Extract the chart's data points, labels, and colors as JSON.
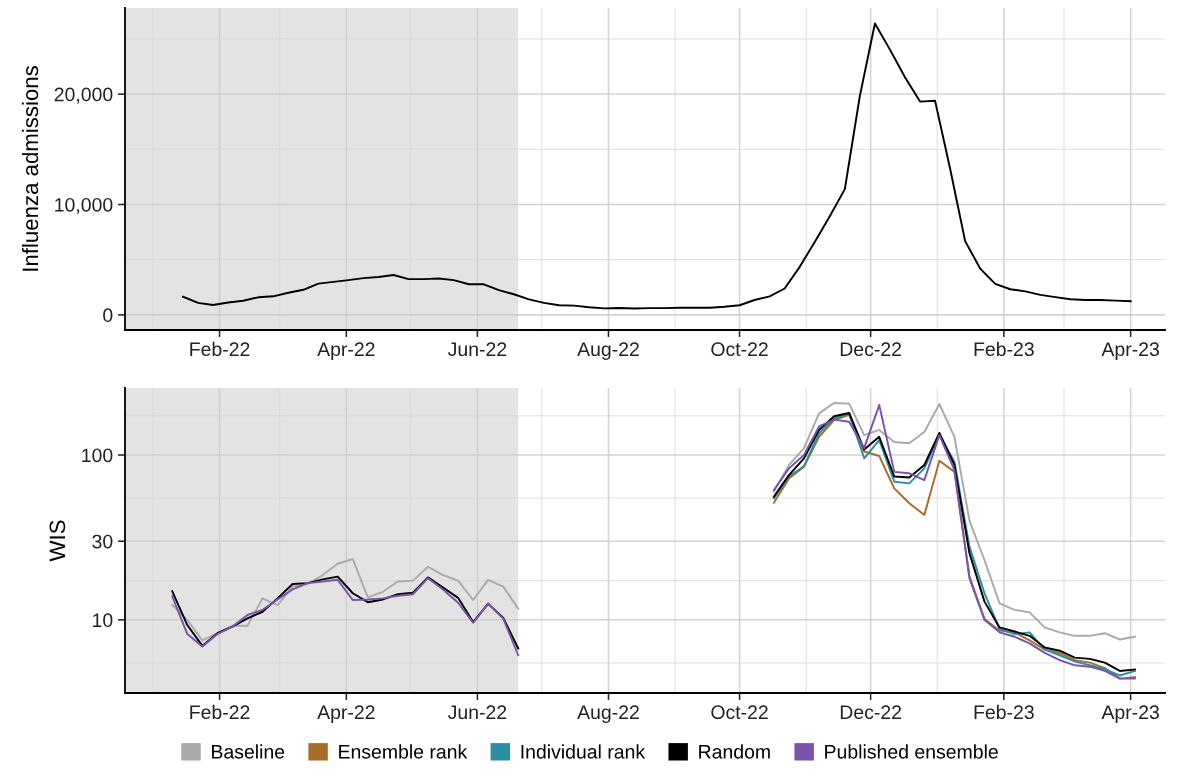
{
  "chart_data": [
    {
      "type": "line",
      "ylabel": "Influenza admissions",
      "x": [
        "2022-01-15",
        "2022-01-22",
        "2022-01-29",
        "2022-02-05",
        "2022-02-12",
        "2022-02-19",
        "2022-02-26",
        "2022-03-05",
        "2022-03-12",
        "2022-03-19",
        "2022-03-26",
        "2022-04-02",
        "2022-04-09",
        "2022-04-16",
        "2022-04-23",
        "2022-04-30",
        "2022-05-07",
        "2022-05-14",
        "2022-05-21",
        "2022-05-28",
        "2022-06-04",
        "2022-06-11",
        "2022-06-18",
        "2022-06-25",
        "2022-07-02",
        "2022-07-09",
        "2022-07-16",
        "2022-07-23",
        "2022-07-30",
        "2022-08-06",
        "2022-08-13",
        "2022-08-20",
        "2022-08-27",
        "2022-09-03",
        "2022-09-10",
        "2022-09-17",
        "2022-09-24",
        "2022-10-01",
        "2022-10-08",
        "2022-10-15",
        "2022-10-22",
        "2022-10-29",
        "2022-11-05",
        "2022-11-12",
        "2022-11-19",
        "2022-11-26",
        "2022-12-03",
        "2022-12-10",
        "2022-12-17",
        "2022-12-24",
        "2022-12-31",
        "2023-01-07",
        "2023-01-14",
        "2023-01-21",
        "2023-01-28",
        "2023-02-04",
        "2023-02-11",
        "2023-02-18",
        "2023-02-25",
        "2023-03-04",
        "2023-03-11",
        "2023-03-18",
        "2023-03-25",
        "2023-04-01"
      ],
      "series": [
        {
          "color": "#000000",
          "values": [
            1650,
            1090,
            900,
            1120,
            1280,
            1590,
            1680,
            2000,
            2270,
            2830,
            2990,
            3150,
            3330,
            3430,
            3610,
            3240,
            3240,
            3300,
            3150,
            2770,
            2770,
            2240,
            1870,
            1400,
            1090,
            870,
            840,
            690,
            590,
            620,
            580,
            610,
            610,
            645,
            645,
            650,
            740,
            870,
            1350,
            1680,
            2390,
            4350,
            6610,
            8940,
            11390,
            19840,
            26390,
            24030,
            21520,
            19320,
            19390,
            13230,
            6680,
            4190,
            2810,
            2320,
            2130,
            1810,
            1610,
            1420,
            1350,
            1350,
            1290,
            1230
          ]
        }
      ],
      "xlim": [
        "2021-12-19",
        "2023-04-17"
      ],
      "xticks": [
        {
          "value": "2022-01-01",
          "label": null
        },
        {
          "value": "2022-02-01",
          "label": "Feb-22"
        },
        {
          "value": "2022-03-01",
          "label": null
        },
        {
          "value": "2022-04-01",
          "label": "Apr-22"
        },
        {
          "value": "2022-05-01",
          "label": null
        },
        {
          "value": "2022-06-01",
          "label": "Jun-22"
        },
        {
          "value": "2022-07-01",
          "label": null
        },
        {
          "value": "2022-08-01",
          "label": "Aug-22"
        },
        {
          "value": "2022-09-01",
          "label": null
        },
        {
          "value": "2022-10-01",
          "label": "Oct-22"
        },
        {
          "value": "2022-11-01",
          "label": null
        },
        {
          "value": "2022-12-01",
          "label": "Dec-22"
        },
        {
          "value": "2023-01-01",
          "label": null
        },
        {
          "value": "2023-02-01",
          "label": "Feb-23"
        },
        {
          "value": "2023-03-01",
          "label": null
        },
        {
          "value": "2023-04-01",
          "label": "Apr-23"
        }
      ],
      "ylim": [
        -1370,
        27800
      ],
      "yticks": [
        {
          "value": 0,
          "label": "0"
        },
        {
          "value": 5000,
          "label": null
        },
        {
          "value": 10000,
          "label": "10,000"
        },
        {
          "value": 15000,
          "label": null
        },
        {
          "value": 20000,
          "label": "20,000"
        },
        {
          "value": 25000,
          "label": null
        }
      ],
      "bands": [
        {
          "axis": "x",
          "from": "2021-12-19",
          "to": "2022-06-20",
          "color": "#e3e3e3"
        }
      ],
      "grid": true,
      "legend": false
    },
    {
      "type": "line",
      "ylabel": "WIS",
      "log": "y",
      "x": [
        "2022-01-10",
        "2022-01-17",
        "2022-01-24",
        "2022-01-31",
        "2022-02-07",
        "2022-02-14",
        "2022-02-21",
        "2022-02-28",
        "2022-03-07",
        "2022-03-14",
        "2022-03-21",
        "2022-03-28",
        "2022-04-04",
        "2022-04-11",
        "2022-04-18",
        "2022-04-25",
        "2022-05-02",
        "2022-05-09",
        "2022-05-16",
        "2022-05-23",
        "2022-05-30",
        "2022-06-06",
        "2022-06-13",
        "2022-06-20",
        "2022-06-27",
        "2022-07-04",
        "2022-07-11",
        "2022-07-18",
        "2022-07-25",
        "2022-08-01",
        "2022-08-08",
        "2022-08-15",
        "2022-08-22",
        "2022-08-29",
        "2022-09-05",
        "2022-09-12",
        "2022-09-19",
        "2022-09-26",
        "2022-10-03",
        "2022-10-10",
        "2022-10-17",
        "2022-10-24",
        "2022-10-31",
        "2022-11-07",
        "2022-11-14",
        "2022-11-21",
        "2022-11-28",
        "2022-12-05",
        "2022-12-12",
        "2022-12-19",
        "2022-12-26",
        "2023-01-02",
        "2023-01-09",
        "2023-01-16",
        "2023-01-23",
        "2023-01-30",
        "2023-02-06",
        "2023-02-13",
        "2023-02-20",
        "2023-02-27",
        "2023-03-06",
        "2023-03-13",
        "2023-03-20",
        "2023-03-27",
        "2023-04-03"
      ],
      "series": [
        {
          "name": "Baseline",
          "color": "#aaaaaa",
          "values": [
            12.3,
            10.0,
            7.5,
            8.3,
            9.2,
            9.2,
            13.5,
            12.3,
            15.9,
            16.5,
            18.7,
            21.9,
            23.4,
            13.7,
            14.8,
            17.1,
            17.3,
            21.0,
            18.7,
            17.3,
            13.2,
            17.5,
            15.9,
            11.7,
            null,
            null,
            null,
            null,
            null,
            null,
            null,
            null,
            null,
            null,
            null,
            null,
            null,
            null,
            null,
            null,
            60,
            87,
            110,
            179,
            207,
            205,
            132,
            142,
            120,
            118,
            138,
            204,
            129,
            40,
            23,
            12.6,
            11.5,
            11.1,
            9.0,
            8.4,
            8.0,
            8.0,
            8.3,
            7.6,
            7.9
          ]
        },
        {
          "name": "Ensemble rank",
          "color": "#a86d28",
          "values": [
            null,
            null,
            null,
            null,
            null,
            null,
            null,
            null,
            null,
            null,
            null,
            null,
            null,
            null,
            null,
            null,
            null,
            null,
            null,
            null,
            null,
            null,
            null,
            null,
            null,
            null,
            null,
            null,
            null,
            null,
            null,
            null,
            null,
            null,
            null,
            null,
            null,
            null,
            null,
            null,
            51.4,
            72,
            85,
            129,
            163,
            175,
            105,
            98.6,
            62.8,
            51,
            43.3,
            92.4,
            79,
            18.3,
            10.1,
            8.6,
            8.4,
            7.5,
            6.6,
            6.3,
            5.7,
            5.5,
            5.1,
            4.4,
            4.5
          ]
        },
        {
          "name": "Individual rank",
          "color": "#2a8fa3",
          "values": [
            null,
            null,
            null,
            null,
            null,
            null,
            null,
            null,
            null,
            null,
            null,
            null,
            null,
            null,
            null,
            null,
            null,
            null,
            null,
            null,
            null,
            null,
            null,
            null,
            null,
            null,
            null,
            null,
            null,
            null,
            null,
            null,
            null,
            null,
            null,
            null,
            null,
            null,
            null,
            null,
            54.6,
            74,
            85.8,
            135,
            167,
            178,
            95.5,
            123,
            68.9,
            67.3,
            83,
            132,
            91,
            27.8,
            14.5,
            8.8,
            8.2,
            8.4,
            6.6,
            6.1,
            5.6,
            5.3,
            5.0,
            4.6,
            4.9
          ]
        },
        {
          "name": "Random",
          "color": "#000000",
          "values": [
            14.9,
            9.3,
            6.95,
            8.3,
            9.1,
            10.2,
            11.2,
            13.5,
            16.5,
            16.7,
            17.6,
            18.3,
            14.5,
            12.8,
            13.3,
            14.3,
            14.6,
            18.1,
            15.7,
            13.6,
            9.7,
            12.5,
            10.3,
            6.7,
            null,
            null,
            null,
            null,
            null,
            null,
            null,
            null,
            null,
            null,
            null,
            null,
            null,
            null,
            null,
            null,
            55.9,
            75.6,
            95.5,
            142,
            172,
            180,
            108,
            129,
            74,
            73,
            87,
            136,
            87,
            25.4,
            12.9,
            9.0,
            8.5,
            8.0,
            6.8,
            6.5,
            5.9,
            5.8,
            5.5,
            4.9,
            5.0
          ]
        },
        {
          "name": "Published ensemble",
          "color": "#7b52ab",
          "values": [
            13.9,
            8.2,
            6.9,
            8.2,
            9.1,
            10.7,
            11.5,
            13.3,
            15.3,
            16.7,
            17.1,
            17.5,
            13.2,
            13.3,
            13.5,
            14.0,
            14.3,
            17.9,
            15.3,
            12.7,
            9.6,
            12.6,
            10.2,
            6.1,
            null,
            null,
            null,
            null,
            null,
            null,
            null,
            null,
            null,
            null,
            null,
            null,
            null,
            null,
            null,
            null,
            61.4,
            83,
            100,
            149,
            164,
            159,
            110,
            201,
            79,
            77.5,
            70.5,
            132,
            81,
            17.9,
            10,
            8.4,
            7.9,
            7.2,
            6.3,
            5.7,
            5.3,
            5.2,
            4.9,
            4.4,
            4.4
          ]
        }
      ],
      "xlim": [
        "2021-12-19",
        "2023-04-17"
      ],
      "xticks": [
        {
          "value": "2022-01-01",
          "label": null
        },
        {
          "value": "2022-02-01",
          "label": "Feb-22"
        },
        {
          "value": "2022-03-01",
          "label": null
        },
        {
          "value": "2022-04-01",
          "label": "Apr-22"
        },
        {
          "value": "2022-05-01",
          "label": null
        },
        {
          "value": "2022-06-01",
          "label": "Jun-22"
        },
        {
          "value": "2022-07-01",
          "label": null
        },
        {
          "value": "2022-08-01",
          "label": "Aug-22"
        },
        {
          "value": "2022-09-01",
          "label": null
        },
        {
          "value": "2022-10-01",
          "label": "Oct-22"
        },
        {
          "value": "2022-11-01",
          "label": null
        },
        {
          "value": "2022-12-01",
          "label": "Dec-22"
        },
        {
          "value": "2023-01-01",
          "label": null
        },
        {
          "value": "2023-02-01",
          "label": "Feb-23"
        },
        {
          "value": "2023-03-01",
          "label": null
        },
        {
          "value": "2023-04-01",
          "label": "Apr-23"
        }
      ],
      "ylim": [
        3.6,
        255
      ],
      "yticks": [
        {
          "value": 5.48,
          "label": null
        },
        {
          "value": 10,
          "label": "10"
        },
        {
          "value": 17.3,
          "label": null
        },
        {
          "value": 30,
          "label": "30"
        },
        {
          "value": 54.8,
          "label": null
        },
        {
          "value": 100,
          "label": "100"
        },
        {
          "value": 173,
          "label": null
        }
      ],
      "bands": [
        {
          "axis": "x",
          "from": "2021-12-19",
          "to": "2022-06-20",
          "color": "#e3e3e3"
        }
      ],
      "grid": true,
      "legend": "bottom"
    }
  ]
}
